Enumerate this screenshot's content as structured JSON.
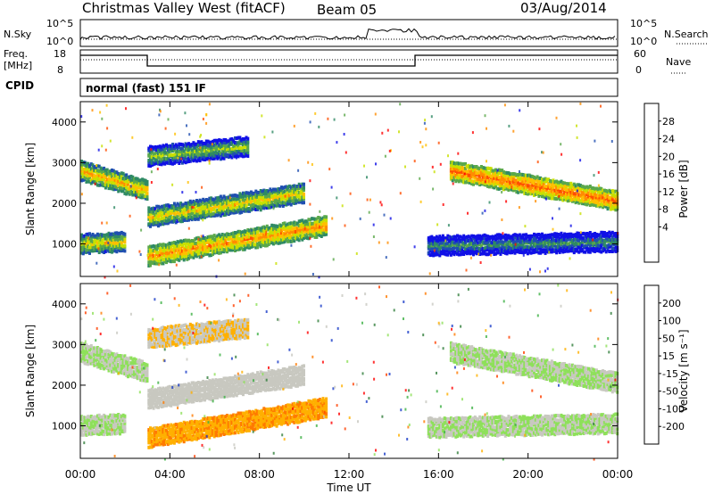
{
  "header": {
    "station": "Christmas Valley West (fitACF)",
    "beam": "Beam 05",
    "date": "03/Aug/2014"
  },
  "top_panels": {
    "nsky_label": "N.Sky",
    "nsky_ticks": [
      "10^5",
      "10^0"
    ],
    "nsearch_label": "N.Search",
    "nsearch_ticks": [
      "10^5",
      "10^0"
    ],
    "freq_label_1": "Freq.",
    "freq_label_2": "[MHz]",
    "freq_ticks": [
      "18",
      "8"
    ],
    "nave_label": "Nave",
    "nave_ticks": [
      "60",
      "0"
    ],
    "cpid_label": "CPID",
    "cpid_text": "normal (fast) 151 IF"
  },
  "chart_data": [
    {
      "type": "heatmap",
      "name": "power",
      "ylabel": "Slant Range [km]",
      "xlabel": "Time UT",
      "ylim": [
        200,
        4500
      ],
      "yticks": [
        "4000",
        "3000",
        "2000",
        "1000"
      ],
      "xticks": [
        "00:00",
        "04:00",
        "08:00",
        "12:00",
        "16:00",
        "20:00",
        "00:00"
      ],
      "colorbar_label": "Power [dB]",
      "colorbar_ticks": [
        "28",
        "24",
        "20",
        "16",
        "12",
        "8",
        "4"
      ],
      "colorbar_colors": [
        "#ff0000",
        "#ff4d00",
        "#ff8c00",
        "#ffbf00",
        "#c8e000",
        "#5aa84a",
        "#2f8a64",
        "#1f4fb0",
        "#1010e6"
      ],
      "features": [
        {
          "desc": "echo band",
          "t_start": 0.0,
          "t_end": 3.0,
          "range_start": 2800,
          "range_end": 2300,
          "peak": 24
        },
        {
          "desc": "echo band",
          "t_start": 3.0,
          "t_end": 7.5,
          "range_start": 3150,
          "range_end": 3400,
          "peak": 18
        },
        {
          "desc": "echo band",
          "t_start": 3.0,
          "t_end": 10.0,
          "range_start": 1650,
          "range_end": 2250,
          "peak": 22
        },
        {
          "desc": "echo band",
          "t_start": 3.0,
          "t_end": 11.0,
          "range_start": 700,
          "range_end": 1450,
          "peak": 26
        },
        {
          "desc": "echo band",
          "t_start": 0.0,
          "t_end": 2.0,
          "range_start": 1000,
          "range_end": 1050,
          "peak": 22
        },
        {
          "desc": "echo band",
          "t_start": 16.5,
          "t_end": 24.0,
          "range_start": 2800,
          "range_end": 2050,
          "peak": 28
        },
        {
          "desc": "echo band",
          "t_start": 15.5,
          "t_end": 24.0,
          "range_start": 950,
          "range_end": 1050,
          "peak": 14
        }
      ]
    },
    {
      "type": "heatmap",
      "name": "velocity",
      "ylabel": "Slant Range [km]",
      "xlabel": "Time UT",
      "ylim": [
        200,
        4500
      ],
      "yticks": [
        "4000",
        "3000",
        "2000",
        "1000"
      ],
      "xticks": [
        "00:00",
        "04:00",
        "08:00",
        "12:00",
        "16:00",
        "20:00",
        "00:00"
      ],
      "colorbar_label": "Velocity [m s⁻¹]",
      "colorbar_ticks": [
        "200",
        "100",
        "50",
        "15",
        "-15",
        "-50",
        "-100",
        "-200"
      ],
      "colorbar_colors": [
        "#1a3cc8",
        "#2f7d3a",
        "#3cb043",
        "#8ee05a",
        "#c8c8c0",
        "#ffb000",
        "#ff7a00",
        "#ff4000",
        "#ff0000"
      ],
      "features": [
        {
          "desc": "echo band",
          "t_start": 0.0,
          "t_end": 3.0,
          "range_start": 2800,
          "range_end": 2300,
          "vel": 0
        },
        {
          "desc": "echo band",
          "t_start": 3.0,
          "t_end": 7.5,
          "range_start": 3150,
          "range_end": 3400,
          "vel": -30
        },
        {
          "desc": "echo band",
          "t_start": 3.0,
          "t_end": 10.0,
          "range_start": 1650,
          "range_end": 2250,
          "vel": -15
        },
        {
          "desc": "echo band",
          "t_start": 3.0,
          "t_end": 11.0,
          "range_start": 700,
          "range_end": 1450,
          "vel": -70
        },
        {
          "desc": "echo band",
          "t_start": 0.0,
          "t_end": 2.0,
          "range_start": 1000,
          "range_end": 1050,
          "vel": 0
        },
        {
          "desc": "echo band",
          "t_start": 16.5,
          "t_end": 24.0,
          "range_start": 2800,
          "range_end": 2050,
          "vel": 0
        },
        {
          "desc": "echo band",
          "t_start": 15.5,
          "t_end": 24.0,
          "range_start": 950,
          "range_end": 1050,
          "vel": 0
        }
      ]
    }
  ]
}
